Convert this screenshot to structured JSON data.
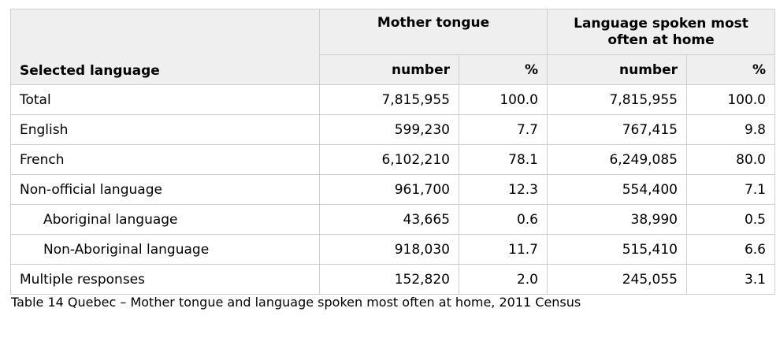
{
  "table": {
    "header": {
      "selected_language": "Selected language",
      "mother_tongue": "Mother tongue",
      "home_language": "Language spoken most often at home",
      "number": "number",
      "percent": "%"
    },
    "rows": [
      {
        "label": "Total",
        "mt_number": "7,815,955",
        "mt_percent": "100.0",
        "home_number": "7,815,955",
        "home_percent": "100.0",
        "indent": false
      },
      {
        "label": "English",
        "mt_number": "599,230",
        "mt_percent": "7.7",
        "home_number": "767,415",
        "home_percent": "9.8",
        "indent": false
      },
      {
        "label": "French",
        "mt_number": "6,102,210",
        "mt_percent": "78.1",
        "home_number": "6,249,085",
        "home_percent": "80.0",
        "indent": false
      },
      {
        "label": "Non-official language",
        "mt_number": "961,700",
        "mt_percent": "12.3",
        "home_number": "554,400",
        "home_percent": "7.1",
        "indent": false
      },
      {
        "label": "Aboriginal language",
        "mt_number": "43,665",
        "mt_percent": "0.6",
        "home_number": "38,990",
        "home_percent": "0.5",
        "indent": true
      },
      {
        "label": "Non-Aboriginal language",
        "mt_number": "918,030",
        "mt_percent": "11.7",
        "home_number": "515,410",
        "home_percent": "6.6",
        "indent": true
      },
      {
        "label": "Multiple responses",
        "mt_number": "152,820",
        "mt_percent": "2.0",
        "home_number": "245,055",
        "home_percent": "3.1",
        "indent": false
      }
    ]
  },
  "caption": "Table 14 Quebec – Mother tongue and language spoken most often at home, 2011 Census"
}
